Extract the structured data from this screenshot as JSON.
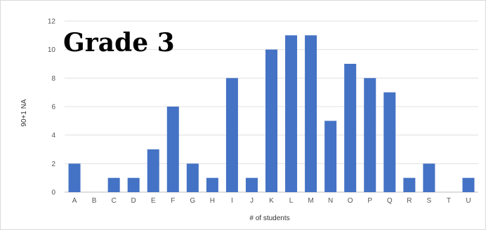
{
  "chart_data": {
    "type": "bar",
    "title": "Grade 3",
    "xlabel": "# of students",
    "ylabel": "90+1 NA",
    "categories": [
      "A",
      "B",
      "C",
      "D",
      "E",
      "F",
      "G",
      "H",
      "I",
      "J",
      "K",
      "L",
      "M",
      "N",
      "O",
      "P",
      "Q",
      "R",
      "S",
      "T",
      "U"
    ],
    "values": [
      2,
      0,
      1,
      1,
      3,
      6,
      2,
      1,
      8,
      1,
      10,
      11,
      11,
      5,
      9,
      8,
      7,
      1,
      2,
      0,
      1
    ],
    "ylim": [
      0,
      12
    ],
    "yticks": [
      0,
      2,
      4,
      6,
      8,
      10,
      12
    ],
    "grid": true,
    "bar_color": "#4472c4",
    "grid_color": "#e0e0e0"
  }
}
